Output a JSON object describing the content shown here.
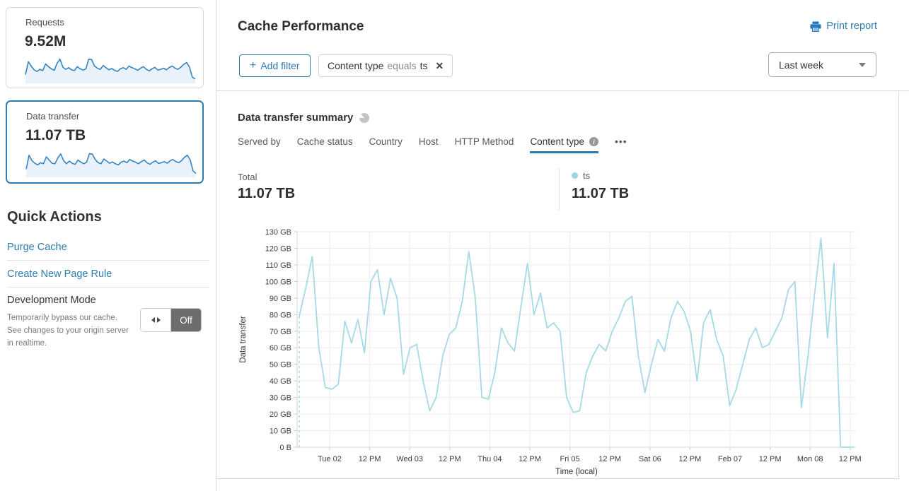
{
  "colors": {
    "accent": "#2c7cb0",
    "chart_line": "#a6d9e6",
    "spark_line": "#3585c2",
    "spark_fill": "#e9f2fa"
  },
  "sidebar": {
    "cards": [
      {
        "label": "Requests",
        "value": "9.52M",
        "selected": false,
        "spark": [
          30,
          78,
          62,
          48,
          42,
          50,
          45,
          70,
          60,
          52,
          46,
          72,
          88,
          58,
          50,
          56,
          48,
          45,
          60,
          52,
          47,
          52,
          88,
          86,
          62,
          54,
          50,
          64,
          56,
          48,
          53,
          46,
          42,
          52,
          56,
          50,
          62,
          56,
          52,
          46,
          54,
          60,
          50,
          44,
          52,
          57,
          47,
          50,
          54,
          48,
          57,
          62,
          54,
          50,
          58,
          68,
          75,
          58,
          20,
          14
        ]
      },
      {
        "label": "Data transfer",
        "value": "11.07 TB",
        "selected": true,
        "spark": [
          28,
          80,
          60,
          50,
          44,
          52,
          48,
          74,
          62,
          50,
          48,
          70,
          85,
          60,
          48,
          58,
          50,
          46,
          62,
          54,
          48,
          54,
          86,
          84,
          64,
          52,
          48,
          66,
          58,
          50,
          55,
          48,
          44,
          54,
          58,
          52,
          64,
          58,
          54,
          48,
          56,
          62,
          52,
          46,
          54,
          59,
          49,
          52,
          56,
          50,
          59,
          64,
          56,
          52,
          60,
          72,
          80,
          62,
          22,
          12
        ]
      }
    ],
    "quick_actions": {
      "title": "Quick Actions",
      "links": [
        "Purge Cache",
        "Create New Page Rule"
      ],
      "dev_mode": {
        "title": "Development Mode",
        "description": "Temporarily bypass our cache. See changes to your origin server in realtime.",
        "toggle_label": "Off"
      }
    }
  },
  "header": {
    "title": "Cache Performance",
    "print_label": "Print report"
  },
  "filters": {
    "add_plus": "+",
    "add_label": "Add filter",
    "chip": {
      "field": "Content type",
      "operator": "equals",
      "value": "ts",
      "close": "✕"
    },
    "period": "Last week"
  },
  "summary": {
    "title": "Data transfer summary",
    "tabs": [
      {
        "label": "Served by"
      },
      {
        "label": "Cache status"
      },
      {
        "label": "Country"
      },
      {
        "label": "Host"
      },
      {
        "label": "HTTP Method"
      },
      {
        "label": "Content type",
        "active": true,
        "has_info": true
      }
    ],
    "info_glyph": "i",
    "more_label": "•••",
    "total_label": "Total",
    "total_value": "11.07 TB",
    "legend": {
      "name": "ts",
      "value": "11.07 TB",
      "color": "#9fd4e3"
    }
  },
  "chart_data": {
    "type": "line",
    "title": "Data transfer summary",
    "xlabel": "Time (local)",
    "ylabel": "Data transfer",
    "ylim": [
      0,
      130
    ],
    "grid": true,
    "y_tick_labels": [
      "0 B",
      "10 GB",
      "20 GB",
      "30 GB",
      "40 GB",
      "50 GB",
      "60 GB",
      "70 GB",
      "80 GB",
      "90 GB",
      "100 GB",
      "110 GB",
      "120 GB",
      "130 GB"
    ],
    "x_tick_labels": [
      "Tue 02",
      "12 PM",
      "Wed 03",
      "12 PM",
      "Thu 04",
      "12 PM",
      "Fri 05",
      "12 PM",
      "Sat 06",
      "12 PM",
      "Feb 07",
      "12 PM",
      "Mon 08",
      "12 PM"
    ],
    "start_dashed": true,
    "series": [
      {
        "name": "ts",
        "color": "#a6d9e6",
        "unit": "GB",
        "values": [
          79,
          96,
          115,
          60,
          36,
          35,
          38,
          76,
          63,
          77,
          57,
          100,
          107,
          80,
          102,
          90,
          44,
          60,
          62,
          40,
          22,
          30,
          55,
          68,
          72,
          88,
          118,
          90,
          30,
          29,
          45,
          72,
          63,
          58,
          85,
          111,
          80,
          93,
          72,
          75,
          70,
          30,
          21,
          22,
          45,
          55,
          62,
          58,
          70,
          78,
          88,
          91,
          55,
          33,
          50,
          65,
          58,
          78,
          88,
          82,
          70,
          40,
          75,
          83,
          65,
          55,
          25,
          35,
          50,
          65,
          72,
          60,
          62,
          70,
          78,
          95,
          100,
          24,
          55,
          92,
          126,
          66,
          111,
          0,
          0,
          0
        ]
      }
    ]
  }
}
